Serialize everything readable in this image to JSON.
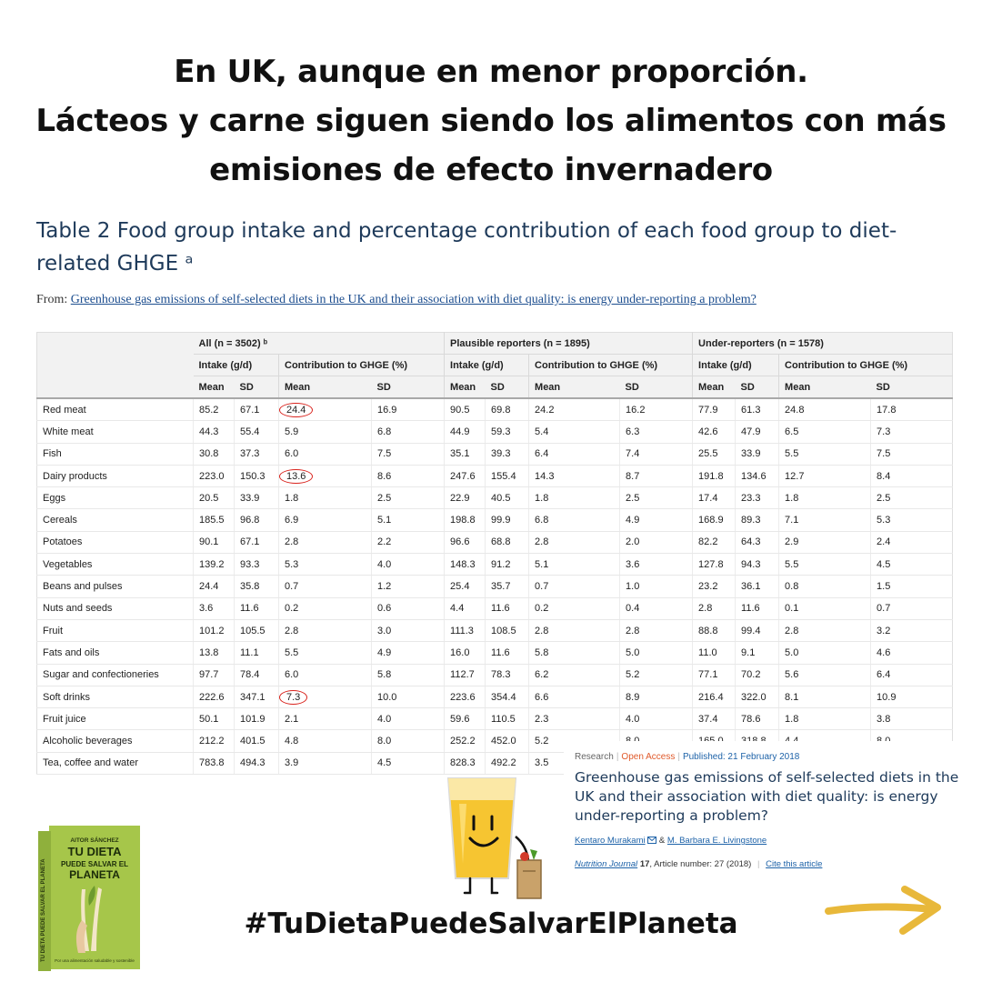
{
  "headline": {
    "line1": "En UK, aunque en menor proporción.",
    "line2": "Lácteos y carne siguen siendo los alimentos con más",
    "line3": "emisiones de efecto invernadero"
  },
  "table_title": "Table 2 Food group intake and percentage contribution of each food group to diet-related GHGE ᵃ",
  "from_label": "From:",
  "from_link": "Greenhouse gas emissions of self-selected diets in the UK and their association with diet quality: is energy under-reporting a problem?",
  "table": {
    "groups": [
      "All (n = 3502) ᵇ",
      "Plausible reporters (n = 1895)",
      "Under-reporters (n = 1578)"
    ],
    "subheaders": [
      "Intake (g/d)",
      "Contribution to GHGE (%)"
    ],
    "stats": [
      "Mean",
      "SD"
    ],
    "rows": [
      [
        "Red meat",
        "85.2",
        "67.1",
        "24.4",
        "16.9",
        "90.5",
        "69.8",
        "24.2",
        "16.2",
        "77.9",
        "61.3",
        "24.8",
        "17.8"
      ],
      [
        "White meat",
        "44.3",
        "55.4",
        "5.9",
        "6.8",
        "44.9",
        "59.3",
        "5.4",
        "6.3",
        "42.6",
        "47.9",
        "6.5",
        "7.3"
      ],
      [
        "Fish",
        "30.8",
        "37.3",
        "6.0",
        "7.5",
        "35.1",
        "39.3",
        "6.4",
        "7.4",
        "25.5",
        "33.9",
        "5.5",
        "7.5"
      ],
      [
        "Dairy products",
        "223.0",
        "150.3",
        "13.6",
        "8.6",
        "247.6",
        "155.4",
        "14.3",
        "8.7",
        "191.8",
        "134.6",
        "12.7",
        "8.4"
      ],
      [
        "Eggs",
        "20.5",
        "33.9",
        "1.8",
        "2.5",
        "22.9",
        "40.5",
        "1.8",
        "2.5",
        "17.4",
        "23.3",
        "1.8",
        "2.5"
      ],
      [
        "Cereals",
        "185.5",
        "96.8",
        "6.9",
        "5.1",
        "198.8",
        "99.9",
        "6.8",
        "4.9",
        "168.9",
        "89.3",
        "7.1",
        "5.3"
      ],
      [
        "Potatoes",
        "90.1",
        "67.1",
        "2.8",
        "2.2",
        "96.6",
        "68.8",
        "2.8",
        "2.0",
        "82.2",
        "64.3",
        "2.9",
        "2.4"
      ],
      [
        "Vegetables",
        "139.2",
        "93.3",
        "5.3",
        "4.0",
        "148.3",
        "91.2",
        "5.1",
        "3.6",
        "127.8",
        "94.3",
        "5.5",
        "4.5"
      ],
      [
        "Beans and pulses",
        "24.4",
        "35.8",
        "0.7",
        "1.2",
        "25.4",
        "35.7",
        "0.7",
        "1.0",
        "23.2",
        "36.1",
        "0.8",
        "1.5"
      ],
      [
        "Nuts and seeds",
        "3.6",
        "11.6",
        "0.2",
        "0.6",
        "4.4",
        "11.6",
        "0.2",
        "0.4",
        "2.8",
        "11.6",
        "0.1",
        "0.7"
      ],
      [
        "Fruit",
        "101.2",
        "105.5",
        "2.8",
        "3.0",
        "111.3",
        "108.5",
        "2.8",
        "2.8",
        "88.8",
        "99.4",
        "2.8",
        "3.2"
      ],
      [
        "Fats and oils",
        "13.8",
        "11.1",
        "5.5",
        "4.9",
        "16.0",
        "11.6",
        "5.8",
        "5.0",
        "11.0",
        "9.1",
        "5.0",
        "4.6"
      ],
      [
        "Sugar and confectioneries",
        "97.7",
        "78.4",
        "6.0",
        "5.8",
        "112.7",
        "78.3",
        "6.2",
        "5.2",
        "77.1",
        "70.2",
        "5.6",
        "6.4"
      ],
      [
        "Soft drinks",
        "222.6",
        "347.1",
        "7.3",
        "10.0",
        "223.6",
        "354.4",
        "6.6",
        "8.9",
        "216.4",
        "322.0",
        "8.1",
        "10.9"
      ],
      [
        "Fruit juice",
        "50.1",
        "101.9",
        "2.1",
        "4.0",
        "59.6",
        "110.5",
        "2.3",
        "4.0",
        "37.4",
        "78.6",
        "1.8",
        "3.8"
      ],
      [
        "Alcoholic beverages",
        "212.2",
        "401.5",
        "4.8",
        "8.0",
        "252.2",
        "452.0",
        "5.2",
        "8.0",
        "165.0",
        "318.8",
        "4.4",
        "8.0"
      ],
      [
        "Tea, coffee and water",
        "783.8",
        "494.3",
        "3.9",
        "4.5",
        "828.3",
        "492.2",
        "3.5",
        "",
        "",
        "",
        "",
        ""
      ]
    ]
  },
  "article": {
    "type_label": "Research",
    "open_access": "Open Access",
    "published": "Published: 21 February 2018",
    "title": "Greenhouse gas emissions of self-selected diets in the UK and their association with diet quality: is energy under-reporting a problem?",
    "author1": "Kentaro Murakami",
    "and": "&",
    "author2": "M. Barbara E. Livingstone",
    "journal": "Nutrition Journal",
    "volume": "17",
    "article_info": ", Article number: 27 (2018)",
    "cite": "Cite this article"
  },
  "book": {
    "author": "AITOR SÁNCHEZ",
    "title_line1": "TU DIETA",
    "title_line2": "PUEDE SALVAR EL",
    "title_line3": "PLANETA",
    "spine": "TU DIETA PUEDE SALVAR EL PLANETA",
    "subtitle": "Por una alimentación saludable y sostenible"
  },
  "hashtag": "#TuDietaPuedeSalvarElPlaneta",
  "colors": {
    "title_blue": "#1e3a5a",
    "link_blue": "#1d62a8",
    "circle_red": "#d9231d",
    "arrow_yellow": "#e8b83a",
    "book_green": "#a6c64a"
  }
}
